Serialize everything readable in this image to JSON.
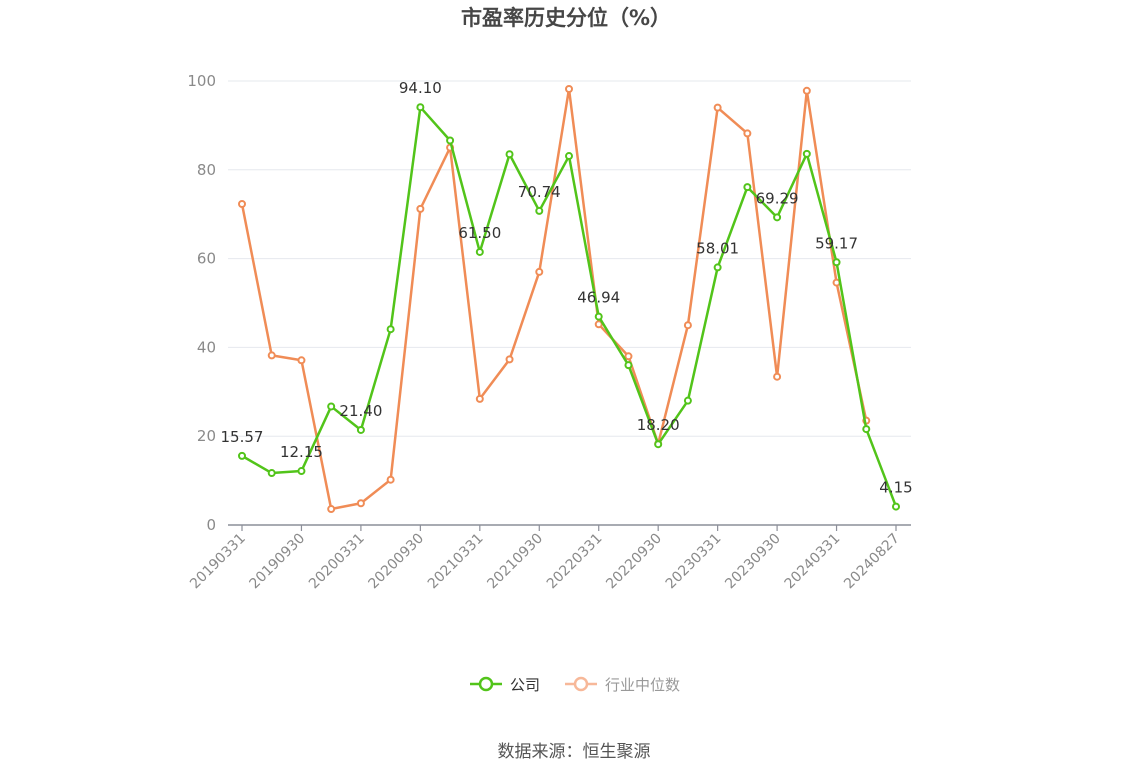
{
  "chart_data": {
    "type": "line",
    "title": "市盈率历史分位（%）",
    "ylim": [
      0,
      100
    ],
    "yticks": [
      "0",
      "20",
      "40",
      "60",
      "80",
      "100"
    ],
    "grid": true,
    "legend_placement": "bottom-center",
    "x": [
      "20190331",
      "20190630",
      "20190930",
      "20191231",
      "20200331",
      "20200630",
      "20200930",
      "20201231",
      "20210331",
      "20210630",
      "20210930",
      "20211231",
      "20220331",
      "20220630",
      "20220930",
      "20221231",
      "20230331",
      "20230630",
      "20230930",
      "20231231",
      "20240331",
      "20240630",
      "20240827"
    ],
    "x_tick_labels": [
      "20190331",
      "20190930",
      "20200331",
      "20200930",
      "20210331",
      "20210930",
      "20220331",
      "20220930",
      "20230331",
      "20230930",
      "20240331",
      "20240827"
    ],
    "series": [
      {
        "name": "公司",
        "color": "#52c41a",
        "values": [
          15.57,
          11.7,
          12.15,
          26.7,
          21.4,
          44.1,
          94.1,
          86.6,
          61.5,
          83.5,
          70.74,
          83.1,
          46.94,
          36.0,
          18.2,
          28.0,
          58.01,
          76.1,
          69.29,
          83.6,
          59.17,
          21.6,
          4.15
        ],
        "labels": [
          "15.57",
          "",
          "12.15",
          "",
          "21.40",
          "",
          "94.10",
          "",
          "61.50",
          "",
          "70.74",
          "",
          "46.94",
          "",
          "18.20",
          "",
          "58.01",
          "",
          "69.29",
          "",
          "59.17",
          "",
          "4.15"
        ]
      },
      {
        "name": "行业中位数",
        "color": "#f08c56",
        "values": [
          72.3,
          38.2,
          37.1,
          3.6,
          4.9,
          10.2,
          71.2,
          85.0,
          28.4,
          37.3,
          57.0,
          98.2,
          45.2,
          38.0,
          18.3,
          45.0,
          94.0,
          88.2,
          33.4,
          97.8,
          54.6,
          23.5,
          null
        ]
      }
    ]
  },
  "footer": {
    "source": "数据来源：恒生聚源"
  }
}
